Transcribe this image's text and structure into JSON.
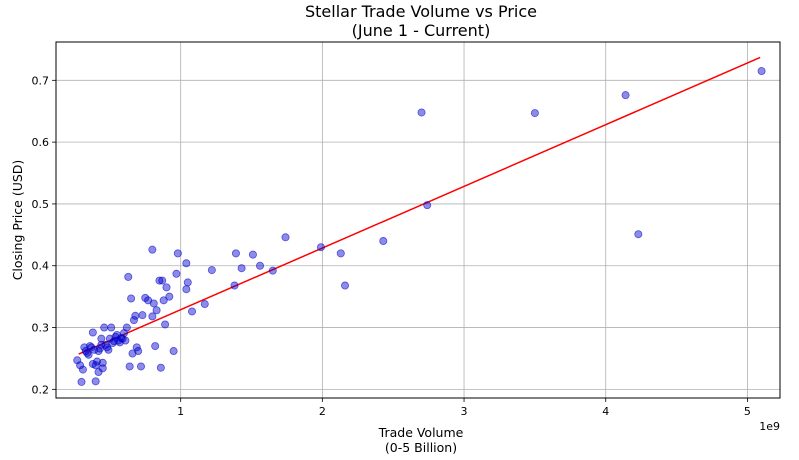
{
  "chart_data": {
    "type": "scatter",
    "title_lines": [
      "Stellar Trade Volume vs Price",
      "(June 1 - Current)"
    ],
    "xlabel_lines": [
      "Trade Volume",
      "(0-5 Billion)"
    ],
    "ylabel": "Closing Price (USD)",
    "x_offset_label": "1e9",
    "x_ticks": [
      1,
      2,
      3,
      4,
      5
    ],
    "y_ticks": [
      0.2,
      0.3,
      0.4,
      0.5,
      0.6,
      0.7
    ],
    "xlim": [
      0.12,
      5.23
    ],
    "ylim": [
      0.186,
      0.762
    ],
    "grid": true,
    "colors": {
      "points": "#0000cd",
      "line": "#ff0000",
      "grid": "#b0b0b0"
    },
    "regression_line": {
      "x": [
        0.28,
        5.09
      ],
      "y": [
        0.257,
        0.737
      ]
    },
    "points": [
      [
        0.27,
        0.247
      ],
      [
        0.29,
        0.239
      ],
      [
        0.3,
        0.212
      ],
      [
        0.31,
        0.232
      ],
      [
        0.32,
        0.268
      ],
      [
        0.33,
        0.262
      ],
      [
        0.34,
        0.259
      ],
      [
        0.35,
        0.256
      ],
      [
        0.36,
        0.27
      ],
      [
        0.37,
        0.268
      ],
      [
        0.38,
        0.292
      ],
      [
        0.38,
        0.241
      ],
      [
        0.39,
        0.264
      ],
      [
        0.4,
        0.213
      ],
      [
        0.4,
        0.239
      ],
      [
        0.41,
        0.245
      ],
      [
        0.42,
        0.228
      ],
      [
        0.42,
        0.262
      ],
      [
        0.43,
        0.266
      ],
      [
        0.44,
        0.272
      ],
      [
        0.44,
        0.282
      ],
      [
        0.45,
        0.243
      ],
      [
        0.45,
        0.234
      ],
      [
        0.46,
        0.3
      ],
      [
        0.47,
        0.272
      ],
      [
        0.48,
        0.268
      ],
      [
        0.49,
        0.264
      ],
      [
        0.5,
        0.282
      ],
      [
        0.51,
        0.3
      ],
      [
        0.52,
        0.275
      ],
      [
        0.53,
        0.278
      ],
      [
        0.54,
        0.285
      ],
      [
        0.55,
        0.288
      ],
      [
        0.56,
        0.279
      ],
      [
        0.57,
        0.276
      ],
      [
        0.58,
        0.283
      ],
      [
        0.59,
        0.282
      ],
      [
        0.6,
        0.291
      ],
      [
        0.61,
        0.279
      ],
      [
        0.62,
        0.3
      ],
      [
        0.63,
        0.382
      ],
      [
        0.64,
        0.237
      ],
      [
        0.65,
        0.347
      ],
      [
        0.66,
        0.258
      ],
      [
        0.67,
        0.312
      ],
      [
        0.68,
        0.319
      ],
      [
        0.69,
        0.268
      ],
      [
        0.7,
        0.262
      ],
      [
        0.72,
        0.237
      ],
      [
        0.73,
        0.32
      ],
      [
        0.75,
        0.348
      ],
      [
        0.77,
        0.344
      ],
      [
        0.8,
        0.426
      ],
      [
        0.8,
        0.318
      ],
      [
        0.81,
        0.339
      ],
      [
        0.82,
        0.27
      ],
      [
        0.83,
        0.328
      ],
      [
        0.85,
        0.376
      ],
      [
        0.86,
        0.235
      ],
      [
        0.87,
        0.376
      ],
      [
        0.88,
        0.344
      ],
      [
        0.89,
        0.305
      ],
      [
        0.9,
        0.365
      ],
      [
        0.92,
        0.35
      ],
      [
        0.95,
        0.262
      ],
      [
        0.97,
        0.387
      ],
      [
        0.98,
        0.42
      ],
      [
        1.04,
        0.404
      ],
      [
        1.04,
        0.362
      ],
      [
        1.05,
        0.373
      ],
      [
        1.08,
        0.326
      ],
      [
        1.17,
        0.338
      ],
      [
        1.22,
        0.393
      ],
      [
        1.38,
        0.368
      ],
      [
        1.39,
        0.42
      ],
      [
        1.43,
        0.396
      ],
      [
        1.51,
        0.418
      ],
      [
        1.56,
        0.4
      ],
      [
        1.65,
        0.392
      ],
      [
        1.74,
        0.446
      ],
      [
        1.99,
        0.43
      ],
      [
        2.13,
        0.42
      ],
      [
        2.16,
        0.368
      ],
      [
        2.43,
        0.44
      ],
      [
        2.7,
        0.648
      ],
      [
        2.74,
        0.498
      ],
      [
        3.5,
        0.647
      ],
      [
        4.14,
        0.676
      ],
      [
        4.23,
        0.451
      ],
      [
        5.1,
        0.715
      ]
    ]
  }
}
